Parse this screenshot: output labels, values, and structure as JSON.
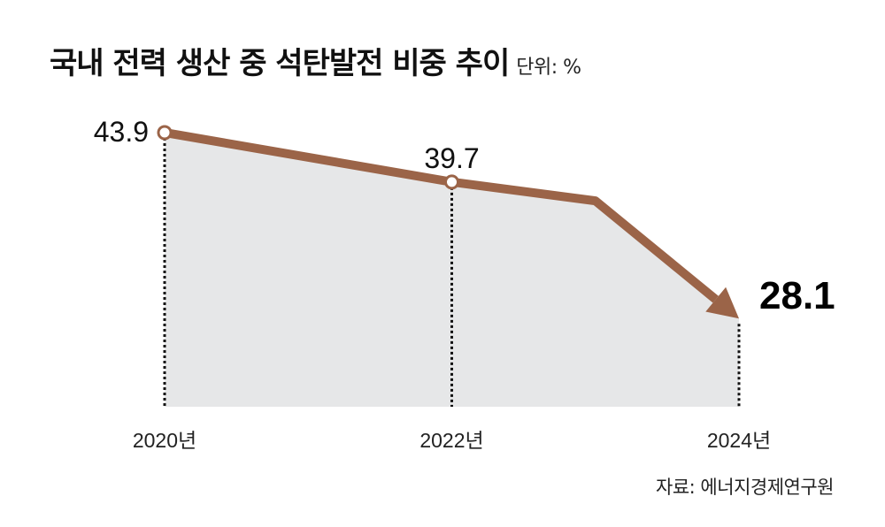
{
  "chart_data": {
    "type": "area",
    "title": "국내 전력 생산 중 석탄발전 비중 추이",
    "unit": "단위: %",
    "source": "자료: 에너지경제연구원",
    "x": [
      2020,
      2022,
      2023,
      2024
    ],
    "tick_labels": [
      "2020년",
      "2022년",
      "",
      "2024년"
    ],
    "values": [
      43.9,
      39.7,
      38.1,
      28.1
    ],
    "data_labels": [
      "43.9",
      "39.7",
      "",
      "28.1"
    ],
    "xlim": [
      2020,
      2024
    ],
    "ylim": [
      20.6,
      46
    ],
    "grid": false,
    "colors": {
      "line": "#9b6448",
      "fill": "#e6e7e8",
      "marker_fill": "#ffffff",
      "guide": "#111111"
    }
  }
}
